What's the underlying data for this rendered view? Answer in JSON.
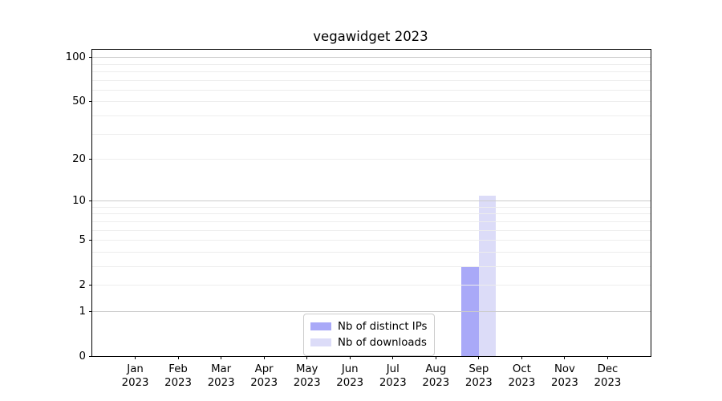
{
  "title": "vegawidget 2023",
  "chart_data": {
    "type": "bar",
    "scale": "log1p",
    "title": "vegawidget 2023",
    "xlabel": "",
    "ylabel": "",
    "categories": [
      "Jan",
      "Feb",
      "Mar",
      "Apr",
      "May",
      "Jun",
      "Jul",
      "Aug",
      "Sep",
      "Oct",
      "Nov",
      "Dec"
    ],
    "category_year": "2023",
    "series": [
      {
        "name": "Nb of distinct IPs",
        "color": "#a9a9f8",
        "values": [
          0,
          0,
          0,
          0,
          0,
          0,
          0,
          0,
          3,
          0,
          0,
          0
        ]
      },
      {
        "name": "Nb of downloads",
        "color": "#dcdcf8",
        "values": [
          0,
          0,
          0,
          0,
          0,
          0,
          0,
          0,
          11,
          0,
          0,
          0
        ]
      }
    ],
    "y_ticks": [
      0,
      1,
      2,
      5,
      10,
      20,
      50,
      100
    ],
    "y_major_grid": [
      1,
      10,
      100
    ],
    "y_minor_grid": [
      2,
      3,
      4,
      5,
      6,
      7,
      8,
      9,
      20,
      30,
      40,
      50,
      60,
      70,
      80,
      90
    ],
    "ylim": [
      0,
      113
    ],
    "grid": "on",
    "legend_position": "lower center",
    "bar_width_fraction": 0.4
  }
}
